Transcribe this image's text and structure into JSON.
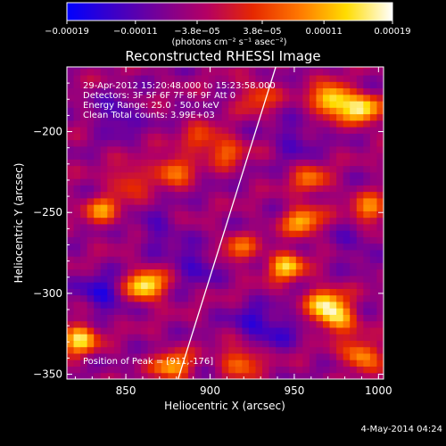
{
  "chart_data": {
    "type": "heatmap",
    "title": "Reconstructed RHESSI Image",
    "xlabel": "Heliocentric X (arcsec)",
    "ylabel": "Heliocentric Y (arcsec)",
    "xlim": [
      815,
      1003
    ],
    "ylim": [
      -353,
      -160
    ],
    "x_ticks": [
      {
        "value": 850,
        "label": "850"
      },
      {
        "value": 900,
        "label": "900"
      },
      {
        "value": 950,
        "label": "950"
      },
      {
        "value": 1000,
        "label": "1000"
      }
    ],
    "y_ticks": [
      {
        "value": -200,
        "label": "−200"
      },
      {
        "value": -250,
        "label": "−250"
      },
      {
        "value": -300,
        "label": "−300"
      },
      {
        "value": -350,
        "label": "−350"
      }
    ],
    "colorbar": {
      "range": [
        -0.00019,
        0.00019
      ],
      "tick_labels": [
        "−0.00019",
        "−0.00011",
        "−3.8e−05",
        "3.8e−05",
        "0.00011",
        "0.00019"
      ],
      "unit_label": "(photons cm⁻² s⁻¹ asec⁻²)",
      "colors": [
        "#0000ff",
        "#3c00c8",
        "#780096",
        "#b40064",
        "#e62800",
        "#ff7800",
        "#ffdc00",
        "#ffffff"
      ]
    },
    "info_lines": [
      "29-Apr-2012 15:20:48.000 to 15:23:58.000",
      "Detectors: 3F 5F 6F 7F 8F 9F  Att 0",
      "Energy Range: 25.0 - 50.0 keV",
      "Clean    Total counts: 3.99E+03"
    ],
    "peak_label": "Position of Peak = [911,-176]",
    "peak": [
      911,
      -176
    ],
    "limb_line": [
      [
        881,
        -353
      ],
      [
        939,
        -160
      ]
    ],
    "bright_regions": [
      {
        "x": 972,
        "y": -180,
        "strength": 1.0
      },
      {
        "x": 990,
        "y": -186,
        "strength": 0.9
      },
      {
        "x": 862,
        "y": -295,
        "strength": 0.95
      },
      {
        "x": 822,
        "y": -328,
        "strength": 0.85
      },
      {
        "x": 878,
        "y": -345,
        "strength": 0.7
      },
      {
        "x": 975,
        "y": -315,
        "strength": 0.8
      },
      {
        "x": 968,
        "y": -305,
        "strength": 0.7
      },
      {
        "x": 955,
        "y": -255,
        "strength": 0.7
      },
      {
        "x": 945,
        "y": -283,
        "strength": 0.75
      },
      {
        "x": 995,
        "y": -248,
        "strength": 0.6
      },
      {
        "x": 990,
        "y": -338,
        "strength": 0.7
      },
      {
        "x": 918,
        "y": -342,
        "strength": 0.6
      },
      {
        "x": 878,
        "y": -223,
        "strength": 0.6
      },
      {
        "x": 852,
        "y": -230,
        "strength": 0.45
      },
      {
        "x": 836,
        "y": -248,
        "strength": 0.55
      },
      {
        "x": 917,
        "y": -272,
        "strength": 0.45
      },
      {
        "x": 910,
        "y": -212,
        "strength": 0.45
      },
      {
        "x": 960,
        "y": -230,
        "strength": 0.5
      },
      {
        "x": 895,
        "y": -205,
        "strength": 0.4
      },
      {
        "x": 928,
        "y": -178,
        "strength": 0.45
      }
    ],
    "dark_regions": [
      {
        "x": 835,
        "y": -300,
        "strength": 0.9
      },
      {
        "x": 845,
        "y": -190,
        "strength": 0.7
      },
      {
        "x": 892,
        "y": -282,
        "strength": 0.7
      },
      {
        "x": 925,
        "y": -318,
        "strength": 0.65
      },
      {
        "x": 950,
        "y": -205,
        "strength": 0.6
      },
      {
        "x": 940,
        "y": -322,
        "strength": 0.55
      },
      {
        "x": 870,
        "y": -262,
        "strength": 0.55
      },
      {
        "x": 985,
        "y": -270,
        "strength": 0.45
      }
    ]
  },
  "footer": {
    "date_stamp": "4-May-2014 04:24"
  }
}
